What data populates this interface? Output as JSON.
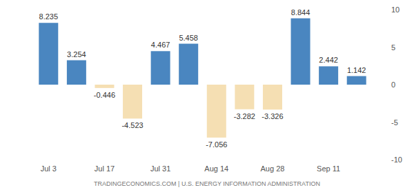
{
  "chart_data": {
    "type": "bar",
    "categories": [
      "Jul 3",
      null,
      "Jul 17",
      null,
      "Jul 31",
      null,
      "Aug 14",
      null,
      "Aug 28",
      null,
      "Sep 11",
      null
    ],
    "values": [
      8.235,
      3.254,
      -0.446,
      -4.523,
      4.467,
      5.458,
      -7.056,
      -3.282,
      -3.326,
      8.844,
      2.442,
      1.142
    ],
    "colors": [
      "#4a86c0",
      "#4a86c0",
      "#f5dfb3",
      "#f5dfb3",
      "#4a86c0",
      "#4a86c0",
      "#f5dfb3",
      "#f5dfb3",
      "#f5dfb3",
      "#4a86c0",
      "#4a86c0",
      "#4a86c0"
    ],
    "ylim": [
      -10,
      10
    ],
    "yticks": [
      -10,
      -5,
      0,
      5,
      10
    ],
    "grid": false,
    "data_labels": true,
    "annotations": [
      "TRADINGECONOMICS.COM | U.S. ENERGY INFORMATION ADMINISTRATION"
    ]
  }
}
